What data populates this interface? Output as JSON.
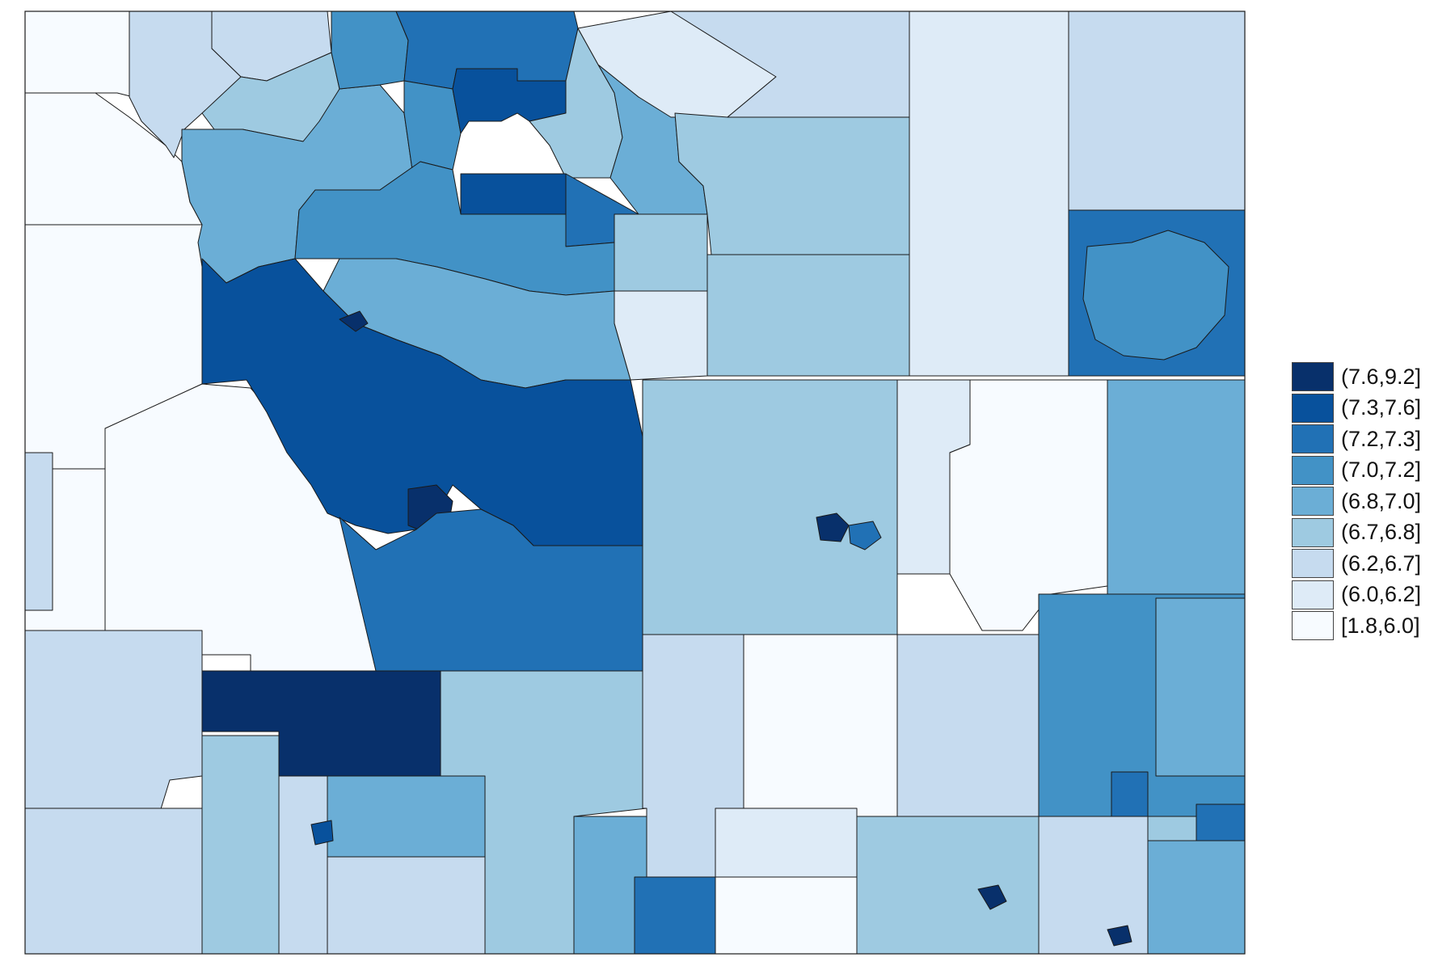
{
  "legend": {
    "classes": [
      {
        "label": "(7.6,9.2]",
        "color": "#08306b"
      },
      {
        "label": "(7.3,7.6]",
        "color": "#08519c"
      },
      {
        "label": "(7.2,7.3]",
        "color": "#2171b5"
      },
      {
        "label": "(7.0,7.2]",
        "color": "#4292c6"
      },
      {
        "label": "(6.8,7.0]",
        "color": "#6baed6"
      },
      {
        "label": "(6.7,6.8]",
        "color": "#9ecae1"
      },
      {
        "label": "(6.2,6.7]",
        "color": "#c6dbef"
      },
      {
        "label": "(6.0,6.2]",
        "color": "#deebf7"
      },
      {
        "label": "[1.8,6.0]",
        "color": "#f7fbff"
      }
    ]
  },
  "map": {
    "boundary_color": "#1a1a1a",
    "background": "#ffffff"
  }
}
